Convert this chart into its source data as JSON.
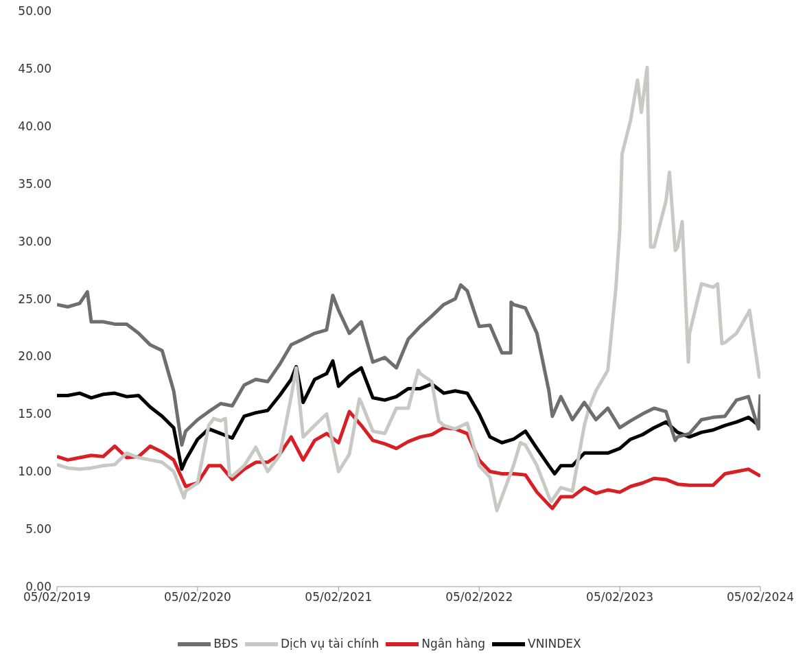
{
  "chart_data": {
    "type": "line",
    "xlim": [
      "2019-02-05",
      "2024-02-05"
    ],
    "xticks": [
      {
        "value": "2019-02-05",
        "label": "05/02/2019"
      },
      {
        "value": "2020-02-05",
        "label": "05/02/2020"
      },
      {
        "value": "2021-02-05",
        "label": "05/02/2021"
      },
      {
        "value": "2022-02-05",
        "label": "05/02/2022"
      },
      {
        "value": "2023-02-05",
        "label": "05/02/2023"
      },
      {
        "value": "2024-02-05",
        "label": "05/02/2024"
      }
    ],
    "ylim": [
      0,
      50
    ],
    "yticks": [
      {
        "value": 0,
        "label": "0.00"
      },
      {
        "value": 5,
        "label": "5.00"
      },
      {
        "value": 10,
        "label": "10.00"
      },
      {
        "value": 15,
        "label": "15.00"
      },
      {
        "value": 20,
        "label": "20.00"
      },
      {
        "value": 25,
        "label": "25.00"
      },
      {
        "value": 30,
        "label": "30.00"
      },
      {
        "value": 35,
        "label": "35.00"
      },
      {
        "value": 40,
        "label": "40.00"
      },
      {
        "value": 45,
        "label": "45.00"
      },
      {
        "value": 50,
        "label": "50.00"
      }
    ],
    "grid": false,
    "legend": "bottom",
    "marker": "none",
    "line_style": "solid",
    "series": [
      {
        "name": "VNINDEX",
        "color": "#000000",
        "x": [
          "2019-02-05",
          "2019-03-05",
          "2019-04-05",
          "2019-05-05",
          "2019-06-05",
          "2019-07-05",
          "2019-08-05",
          "2019-09-05",
          "2019-10-05",
          "2019-11-05",
          "2019-12-05",
          "2019-12-26",
          "2020-01-05",
          "2020-02-05",
          "2020-03-05",
          "2020-04-05",
          "2020-05-05",
          "2020-06-05",
          "2020-07-05",
          "2020-08-05",
          "2020-09-05",
          "2020-10-05",
          "2020-10-18",
          "2020-11-05",
          "2020-12-05",
          "2021-01-05",
          "2021-01-21",
          "2021-02-05",
          "2021-03-05",
          "2021-04-05",
          "2021-05-05",
          "2021-06-05",
          "2021-07-05",
          "2021-08-05",
          "2021-09-05",
          "2021-10-05",
          "2021-11-05",
          "2021-12-05",
          "2022-01-05",
          "2022-02-05",
          "2022-03-05",
          "2022-04-05",
          "2022-05-05",
          "2022-06-05",
          "2022-07-05",
          "2022-08-05",
          "2022-08-20",
          "2022-09-05",
          "2022-10-05",
          "2022-11-05",
          "2022-12-05",
          "2023-01-05",
          "2023-02-05",
          "2023-03-05",
          "2023-04-05",
          "2023-05-05",
          "2023-06-05",
          "2023-07-05",
          "2023-08-05",
          "2023-09-05",
          "2023-10-05",
          "2023-11-05",
          "2023-12-05",
          "2024-01-05",
          "2024-02-05"
        ],
        "values": [
          16.6,
          16.6,
          16.8,
          16.4,
          16.7,
          16.8,
          16.5,
          16.6,
          15.6,
          14.8,
          13.8,
          10.2,
          11.0,
          12.8,
          13.7,
          13.3,
          12.9,
          14.8,
          15.1,
          15.3,
          16.6,
          18.0,
          19.1,
          16.0,
          18.0,
          18.5,
          19.6,
          17.4,
          18.3,
          19.0,
          16.4,
          16.2,
          16.5,
          17.2,
          17.2,
          17.6,
          16.8,
          17.0,
          16.8,
          15.0,
          13.0,
          12.5,
          12.8,
          13.5,
          12.0,
          10.5,
          9.8,
          10.5,
          10.5,
          11.6,
          11.6,
          11.6,
          12.0,
          12.8,
          13.2,
          13.8,
          14.3,
          13.4,
          13.0,
          13.4,
          13.6,
          14.0,
          14.3,
          14.7,
          13.9
        ]
      },
      {
        "name": "Ngân hàng",
        "color": "#d71f26",
        "x": [
          "2019-02-05",
          "2019-03-05",
          "2019-04-05",
          "2019-05-05",
          "2019-06-05",
          "2019-07-05",
          "2019-08-05",
          "2019-09-05",
          "2019-10-05",
          "2019-11-05",
          "2019-12-05",
          "2020-01-05",
          "2020-02-05",
          "2020-03-05",
          "2020-04-05",
          "2020-05-05",
          "2020-06-05",
          "2020-07-05",
          "2020-08-05",
          "2020-09-05",
          "2020-10-05",
          "2020-11-05",
          "2020-12-05",
          "2021-01-05",
          "2021-02-05",
          "2021-03-05",
          "2021-04-05",
          "2021-05-05",
          "2021-06-05",
          "2021-07-05",
          "2021-08-05",
          "2021-09-05",
          "2021-10-05",
          "2021-11-05",
          "2021-12-05",
          "2022-01-05",
          "2022-02-05",
          "2022-03-05",
          "2022-04-05",
          "2022-05-05",
          "2022-06-05",
          "2022-07-05",
          "2022-08-05",
          "2022-08-14",
          "2022-09-05",
          "2022-10-05",
          "2022-11-05",
          "2022-12-05",
          "2023-01-05",
          "2023-02-05",
          "2023-03-05",
          "2023-04-05",
          "2023-05-05",
          "2023-06-05",
          "2023-07-05",
          "2023-08-05",
          "2023-09-05",
          "2023-10-05",
          "2023-11-05",
          "2023-12-05",
          "2024-01-05",
          "2024-02-05"
        ],
        "values": [
          11.3,
          11.0,
          11.2,
          11.4,
          11.3,
          12.2,
          11.2,
          11.3,
          12.2,
          11.7,
          11.0,
          8.7,
          9.0,
          10.5,
          10.5,
          9.3,
          10.2,
          10.8,
          10.8,
          11.5,
          13.0,
          11.0,
          12.7,
          13.3,
          12.5,
          15.2,
          14.0,
          12.7,
          12.4,
          12.0,
          12.6,
          13.0,
          13.2,
          13.8,
          13.7,
          13.3,
          11.0,
          10.0,
          9.8,
          9.8,
          9.7,
          8.2,
          7.1,
          6.8,
          7.8,
          7.8,
          8.6,
          8.1,
          8.4,
          8.2,
          8.7,
          9.0,
          9.4,
          9.3,
          8.9,
          8.8,
          8.8,
          8.8,
          9.8,
          10.0,
          10.2,
          9.6
        ]
      },
      {
        "name": "Dịch vụ tài chính",
        "color": "#c9c9c4",
        "x": [
          "2019-02-05",
          "2019-03-05",
          "2019-04-05",
          "2019-05-05",
          "2019-06-05",
          "2019-07-05",
          "2019-08-05",
          "2019-09-05",
          "2019-10-05",
          "2019-11-05",
          "2019-12-05",
          "2020-01-01",
          "2020-01-05",
          "2020-02-05",
          "2020-03-05",
          "2020-03-18",
          "2020-04-05",
          "2020-04-17",
          "2020-04-28",
          "2020-05-05",
          "2020-06-05",
          "2020-07-05",
          "2020-08-05",
          "2020-09-05",
          "2020-10-05",
          "2020-10-18",
          "2020-11-05",
          "2020-12-05",
          "2021-01-05",
          "2021-02-05",
          "2021-03-05",
          "2021-03-31",
          "2021-04-05",
          "2021-05-05",
          "2021-06-05",
          "2021-07-05",
          "2021-08-05",
          "2021-08-31",
          "2021-09-05",
          "2021-10-05",
          "2021-10-23",
          "2021-11-05",
          "2021-12-05",
          "2022-01-05",
          "2022-02-05",
          "2022-03-05",
          "2022-03-23",
          "2022-04-05",
          "2022-05-05",
          "2022-05-23",
          "2022-06-05",
          "2022-07-05",
          "2022-08-05",
          "2022-08-11",
          "2022-09-05",
          "2022-10-05",
          "2022-11-05",
          "2022-11-17",
          "2022-12-05",
          "2023-01-05",
          "2023-01-26",
          "2023-02-05",
          "2023-02-11",
          "2023-03-05",
          "2023-03-23",
          "2023-04-02",
          "2023-04-17",
          "2023-04-26",
          "2023-05-05",
          "2023-06-05",
          "2023-06-14",
          "2023-06-29",
          "2023-07-05",
          "2023-07-17",
          "2023-08-02",
          "2023-08-05",
          "2023-09-05",
          "2023-10-05",
          "2023-10-17",
          "2023-10-28",
          "2023-11-05",
          "2023-12-05",
          "2024-01-05",
          "2024-01-08",
          "2024-02-02",
          "2024-02-05"
        ],
        "values": [
          10.6,
          10.3,
          10.2,
          10.3,
          10.5,
          10.6,
          11.6,
          11.2,
          11.0,
          10.8,
          10.0,
          7.7,
          8.3,
          9.0,
          14.0,
          14.6,
          14.4,
          14.6,
          9.7,
          9.6,
          10.5,
          12.1,
          10.0,
          11.4,
          16.5,
          19.0,
          13.0,
          14.0,
          15.0,
          10.0,
          11.5,
          16.3,
          16.0,
          13.5,
          13.3,
          15.5,
          15.5,
          18.8,
          18.5,
          17.8,
          14.4,
          14.0,
          13.7,
          14.2,
          10.5,
          9.5,
          6.6,
          7.8,
          10.5,
          12.5,
          12.3,
          10.5,
          7.8,
          7.4,
          8.6,
          8.3,
          14.0,
          15.5,
          17.0,
          18.8,
          26.0,
          31.0,
          37.6,
          40.5,
          44.0,
          41.2,
          45.1,
          29.5,
          29.5,
          33.5,
          36.0,
          29.2,
          29.5,
          31.7,
          19.5,
          22.0,
          26.3,
          26.0,
          26.3,
          21.1,
          21.2,
          22.0,
          23.8,
          24.0,
          18.2,
          18.4
        ]
      },
      {
        "name": "BĐS",
        "color": "#6e6e6e",
        "x": [
          "2019-02-05",
          "2019-03-05",
          "2019-04-05",
          "2019-04-25",
          "2019-05-05",
          "2019-06-05",
          "2019-07-05",
          "2019-08-05",
          "2019-09-05",
          "2019-10-05",
          "2019-11-05",
          "2019-12-05",
          "2019-12-26",
          "2020-01-05",
          "2020-02-05",
          "2020-03-05",
          "2020-04-05",
          "2020-05-05",
          "2020-06-05",
          "2020-07-05",
          "2020-08-05",
          "2020-09-05",
          "2020-10-05",
          "2020-11-05",
          "2020-12-05",
          "2021-01-05",
          "2021-01-21",
          "2021-02-05",
          "2021-03-05",
          "2021-04-05",
          "2021-05-05",
          "2021-06-05",
          "2021-07-05",
          "2021-08-05",
          "2021-09-05",
          "2021-10-05",
          "2021-11-05",
          "2021-12-05",
          "2021-12-19",
          "2022-01-05",
          "2022-02-05",
          "2022-03-05",
          "2022-04-05",
          "2022-04-28",
          "2022-04-29",
          "2022-05-05",
          "2022-06-05",
          "2022-07-05",
          "2022-08-05",
          "2022-08-14",
          "2022-09-05",
          "2022-10-05",
          "2022-11-05",
          "2022-12-05",
          "2023-01-05",
          "2023-02-05",
          "2023-03-05",
          "2023-04-05",
          "2023-05-05",
          "2023-06-05",
          "2023-06-29",
          "2023-07-05",
          "2023-08-05",
          "2023-09-05",
          "2023-10-05",
          "2023-11-05",
          "2023-12-05",
          "2024-01-05",
          "2024-01-31",
          "2024-02-05"
        ],
        "values": [
          24.5,
          24.3,
          24.6,
          25.6,
          23.0,
          23.0,
          22.8,
          22.8,
          22.0,
          21.0,
          20.5,
          17.0,
          12.3,
          13.5,
          14.5,
          15.2,
          15.9,
          15.7,
          17.5,
          18.0,
          17.8,
          19.3,
          21.0,
          21.5,
          22.0,
          22.3,
          25.3,
          24.0,
          22.0,
          23.0,
          19.5,
          19.9,
          19.0,
          21.5,
          22.6,
          23.5,
          24.5,
          25.0,
          26.2,
          25.7,
          22.6,
          22.7,
          20.3,
          20.3,
          24.7,
          24.5,
          24.2,
          22.0,
          17.0,
          14.8,
          16.5,
          14.5,
          16.0,
          14.5,
          15.5,
          13.8,
          14.4,
          15.0,
          15.5,
          15.2,
          12.7,
          13.0,
          13.3,
          14.5,
          14.7,
          14.8,
          16.2,
          16.5,
          13.7,
          16.7
        ]
      }
    ]
  }
}
